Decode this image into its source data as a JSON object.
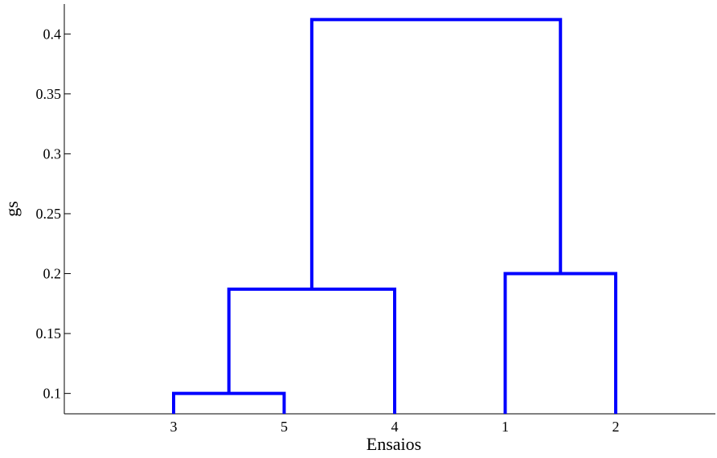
{
  "chart_data": {
    "type": "dendrogram",
    "xlabel": "Ensaios",
    "ylabel": "gs",
    "leaf_order": [
      "3",
      "5",
      "4",
      "1",
      "2"
    ],
    "ylim": [
      0.083,
      0.425
    ],
    "yticks": [
      0.1,
      0.15,
      0.2,
      0.25,
      0.3,
      0.35,
      0.4
    ],
    "ytick_labels": [
      "0.1",
      "0.15",
      "0.2",
      "0.25",
      "0.3",
      "0.35",
      "0.4"
    ],
    "merges": [
      {
        "members": [
          "3",
          "5"
        ],
        "height": 0.1
      },
      {
        "members": [
          "3",
          "5",
          "4"
        ],
        "height": 0.187
      },
      {
        "members": [
          "1",
          "2"
        ],
        "height": 0.2
      },
      {
        "members": [
          "3",
          "5",
          "4",
          "1",
          "2"
        ],
        "height": 0.412
      }
    ],
    "line_color": "#0000ff",
    "axis_color": "#000000",
    "grid": false
  }
}
